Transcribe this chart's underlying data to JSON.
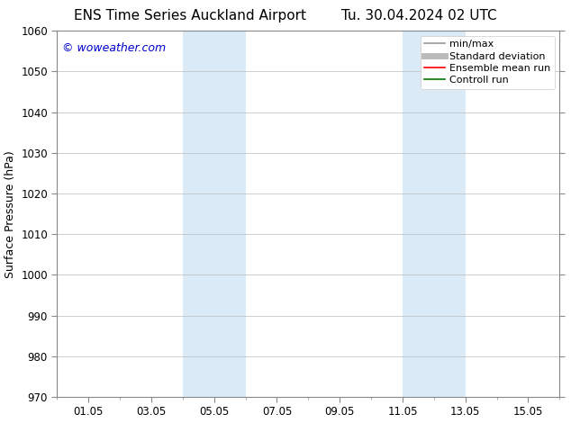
{
  "title": "ENS Time Series Auckland Airport",
  "title2": "Tu. 30.04.2024 02 UTC",
  "ylabel": "Surface Pressure (hPa)",
  "ylim": [
    970,
    1060
  ],
  "yticks": [
    970,
    980,
    990,
    1000,
    1010,
    1020,
    1030,
    1040,
    1050,
    1060
  ],
  "xtick_labels": [
    "01.05",
    "03.05",
    "05.05",
    "07.05",
    "09.05",
    "11.05",
    "13.05",
    "15.05"
  ],
  "xtick_positions": [
    1,
    3,
    5,
    7,
    9,
    11,
    13,
    15
  ],
  "x_minor_ticks": [
    0,
    1,
    2,
    3,
    4,
    5,
    6,
    7,
    8,
    9,
    10,
    11,
    12,
    13,
    14,
    15,
    16
  ],
  "xlim": [
    0,
    16
  ],
  "watermark": "© woweather.com",
  "watermark_color": "#0000cc",
  "background_color": "#ffffff",
  "plot_bg_color": "#ffffff",
  "shaded_regions": [
    {
      "x_start": 4.0,
      "x_end": 6.0
    },
    {
      "x_start": 11.0,
      "x_end": 13.0
    }
  ],
  "shaded_color": "#daeaf7",
  "legend_items": [
    {
      "label": "min/max",
      "color": "#999999",
      "lw": 1.2
    },
    {
      "label": "Standard deviation",
      "color": "#bbbbbb",
      "lw": 5
    },
    {
      "label": "Ensemble mean run",
      "color": "#ff0000",
      "lw": 1.2
    },
    {
      "label": "Controll run",
      "color": "#007700",
      "lw": 1.2
    }
  ],
  "title_fontsize": 11,
  "label_fontsize": 9,
  "tick_fontsize": 8.5,
  "legend_fontsize": 8,
  "grid_color": "#bbbbbb",
  "grid_lw": 0.5,
  "spine_color": "#888888",
  "watermark_fontsize": 9
}
